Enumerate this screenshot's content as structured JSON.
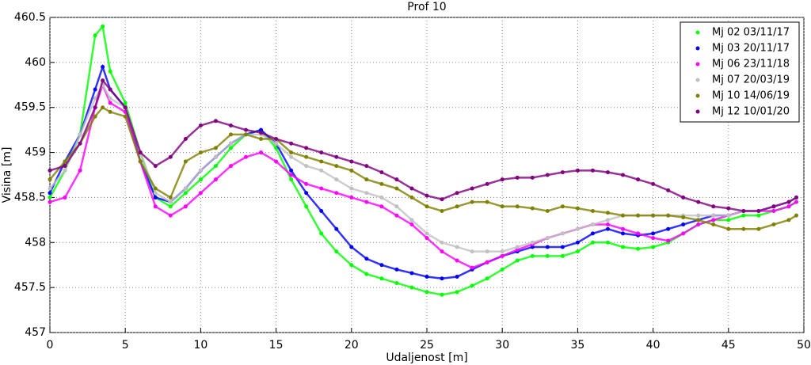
{
  "chart_data": {
    "type": "scatter",
    "title": "Prof 10",
    "xlabel": "Udaljenost [m]",
    "ylabel": "Visina [m]",
    "x": [
      0,
      1,
      2,
      3,
      3.5,
      4,
      5,
      6,
      7,
      8,
      9,
      10,
      11,
      12,
      13,
      14,
      15,
      16,
      17,
      18,
      19,
      20,
      21,
      22,
      23,
      24,
      25,
      26,
      27,
      28,
      29,
      30,
      31,
      32,
      33,
      34,
      35,
      36,
      37,
      38,
      39,
      40,
      41,
      42,
      43,
      44,
      45,
      46,
      47,
      48,
      49,
      49.5
    ],
    "xlim": [
      0,
      50
    ],
    "xticks": [
      0,
      5,
      10,
      15,
      20,
      25,
      30,
      35,
      40,
      45,
      50
    ],
    "ylim": [
      457,
      460.5
    ],
    "yticks": [
      457,
      457.5,
      458,
      458.5,
      459,
      459.5,
      460,
      460.5
    ],
    "grid": true,
    "legend": "upper right",
    "series": [
      {
        "name": "Mj 02 03/11/17",
        "color": "#00ff00",
        "values": [
          458.5,
          458.8,
          459.2,
          460.3,
          460.4,
          459.9,
          459.55,
          459.0,
          458.5,
          458.4,
          458.55,
          458.7,
          458.85,
          459.05,
          459.2,
          459.25,
          459.05,
          458.7,
          458.4,
          458.1,
          457.9,
          457.75,
          457.65,
          457.6,
          457.55,
          457.5,
          457.45,
          457.42,
          457.45,
          457.52,
          457.6,
          457.7,
          457.8,
          457.85,
          457.85,
          457.85,
          457.9,
          458.0,
          458.0,
          457.95,
          457.93,
          457.95,
          458.0,
          458.1,
          458.2,
          458.25,
          458.25,
          458.3,
          458.3,
          458.35,
          458.4,
          458.45
        ]
      },
      {
        "name": "Mj 03 20/11/17",
        "color": "#0000ff",
        "values": [
          458.55,
          458.9,
          459.2,
          459.7,
          459.95,
          459.7,
          459.5,
          458.9,
          458.5,
          458.45,
          458.6,
          458.8,
          458.95,
          459.1,
          459.2,
          459.25,
          459.1,
          458.8,
          458.55,
          458.35,
          458.15,
          457.95,
          457.82,
          457.75,
          457.7,
          457.66,
          457.62,
          457.6,
          457.62,
          457.7,
          457.78,
          457.85,
          457.9,
          457.95,
          457.95,
          457.95,
          458.0,
          458.1,
          458.15,
          458.1,
          458.08,
          458.1,
          458.15,
          458.2,
          458.25,
          458.3,
          458.3,
          458.35,
          458.35,
          458.4,
          458.45,
          458.5
        ]
      },
      {
        "name": "Mj 06 23/11/18",
        "color": "#ff00ff",
        "values": [
          458.45,
          458.5,
          458.8,
          459.5,
          459.75,
          459.55,
          459.45,
          458.9,
          458.4,
          458.3,
          458.4,
          458.55,
          458.7,
          458.85,
          458.95,
          459.0,
          458.9,
          458.75,
          458.65,
          458.6,
          458.55,
          458.5,
          458.45,
          458.4,
          458.3,
          458.2,
          458.05,
          457.9,
          457.8,
          457.72,
          457.78,
          457.85,
          457.92,
          457.98,
          458.05,
          458.1,
          458.15,
          458.2,
          458.2,
          458.15,
          458.1,
          458.05,
          458.02,
          458.1,
          458.2,
          458.25,
          458.3,
          458.35,
          458.35,
          458.35,
          458.4,
          458.45
        ]
      },
      {
        "name": "Mj 07 20/03/19",
        "color": "#c0c0c0",
        "values": [
          458.6,
          458.8,
          459.2,
          459.6,
          459.75,
          459.6,
          459.5,
          459.0,
          458.55,
          458.45,
          458.6,
          458.8,
          458.95,
          459.1,
          459.2,
          459.2,
          459.1,
          458.95,
          458.85,
          458.8,
          458.7,
          458.6,
          458.55,
          458.5,
          458.4,
          458.25,
          458.1,
          458.0,
          457.95,
          457.9,
          457.9,
          457.9,
          457.95,
          458.0,
          458.05,
          458.1,
          458.15,
          458.2,
          458.25,
          458.3,
          458.3,
          458.3,
          458.3,
          458.3,
          458.3,
          458.3,
          458.3,
          458.35,
          458.35,
          458.4,
          458.45,
          458.5
        ]
      },
      {
        "name": "Mj 10 14/06/19",
        "color": "#808000",
        "values": [
          458.7,
          458.9,
          459.1,
          459.4,
          459.5,
          459.45,
          459.4,
          458.9,
          458.6,
          458.5,
          458.9,
          459.0,
          459.05,
          459.2,
          459.2,
          459.15,
          459.15,
          459.0,
          458.95,
          458.9,
          458.85,
          458.8,
          458.7,
          458.65,
          458.6,
          458.5,
          458.4,
          458.35,
          458.4,
          458.45,
          458.45,
          458.4,
          458.4,
          458.38,
          458.35,
          458.4,
          458.38,
          458.35,
          458.33,
          458.3,
          458.3,
          458.3,
          458.3,
          458.28,
          458.25,
          458.2,
          458.15,
          458.15,
          458.15,
          458.2,
          458.25,
          458.3
        ]
      },
      {
        "name": "Mj 12 10/01/20",
        "color": "#800080",
        "values": [
          458.8,
          458.85,
          459.1,
          459.5,
          459.8,
          459.7,
          459.5,
          459.0,
          458.85,
          458.95,
          459.15,
          459.3,
          459.35,
          459.3,
          459.25,
          459.22,
          459.15,
          459.1,
          459.05,
          459.0,
          458.95,
          458.9,
          458.85,
          458.78,
          458.7,
          458.6,
          458.52,
          458.48,
          458.55,
          458.6,
          458.65,
          458.7,
          458.72,
          458.72,
          458.75,
          458.78,
          458.8,
          458.8,
          458.78,
          458.75,
          458.7,
          458.65,
          458.58,
          458.5,
          458.45,
          458.4,
          458.38,
          458.35,
          458.35,
          458.4,
          458.45,
          458.5
        ]
      }
    ]
  }
}
